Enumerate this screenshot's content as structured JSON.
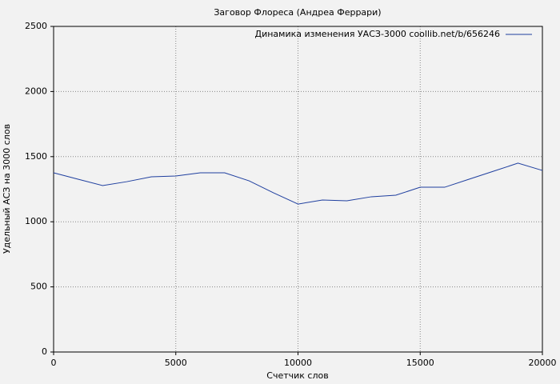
{
  "chart_data": {
    "type": "line",
    "title": "Заговор Флореса (Андреа Феррари)",
    "xlabel": "Счетчик слов",
    "ylabel": "Удельный АСЗ на 3000 слов",
    "x": [
      0,
      1000,
      2000,
      3000,
      4000,
      5000,
      6000,
      7000,
      8000,
      9000,
      10000,
      11000,
      12000,
      13000,
      14000,
      15000,
      16000,
      17000,
      18000,
      19000,
      20000
    ],
    "series": [
      {
        "name": "Динамика изменения УАСЗ-3000 coollib.net/b/656246",
        "color": "#1f3f9f",
        "values": [
          1376,
          1327,
          1278,
          1308,
          1345,
          1351,
          1376,
          1376,
          1314,
          1222,
          1136,
          1167,
          1161,
          1192,
          1204,
          1265,
          1265,
          1327,
          1388,
          1450,
          1394
        ]
      }
    ],
    "xlim": [
      0,
      20000
    ],
    "xticks": [
      0,
      5000,
      10000,
      15000,
      20000
    ],
    "ylim": [
      0,
      2500
    ],
    "yticks": [
      0,
      500,
      1000,
      1500,
      2000,
      2500
    ],
    "grid": true,
    "legend": "upper right"
  }
}
